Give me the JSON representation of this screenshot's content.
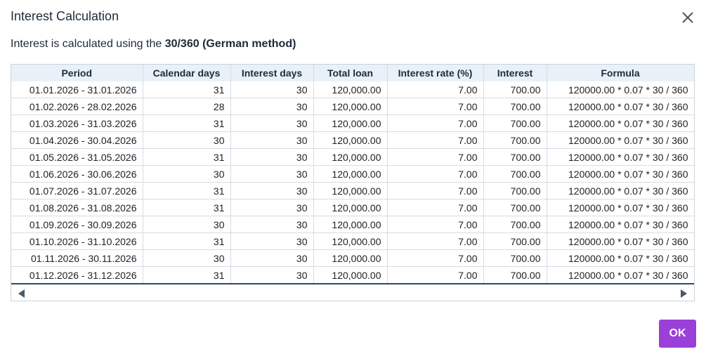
{
  "dialog": {
    "title": "Interest Calculation",
    "description_prefix": "Interest is calculated using the ",
    "description_bold": "30/360 (German method)",
    "ok_label": "OK",
    "accent_color": "#9b3fd9"
  },
  "table": {
    "columns": [
      "Period",
      "Calendar days",
      "Interest days",
      "Total loan",
      "Interest rate (%)",
      "Interest",
      "Formula"
    ],
    "rows": [
      [
        "01.01.2026 - 31.01.2026",
        "31",
        "30",
        "120,000.00",
        "7.00",
        "700.00",
        "120000.00 * 0.07 * 30 / 360"
      ],
      [
        "01.02.2026 - 28.02.2026",
        "28",
        "30",
        "120,000.00",
        "7.00",
        "700.00",
        "120000.00 * 0.07 * 30 / 360"
      ],
      [
        "01.03.2026 - 31.03.2026",
        "31",
        "30",
        "120,000.00",
        "7.00",
        "700.00",
        "120000.00 * 0.07 * 30 / 360"
      ],
      [
        "01.04.2026 - 30.04.2026",
        "30",
        "30",
        "120,000.00",
        "7.00",
        "700.00",
        "120000.00 * 0.07 * 30 / 360"
      ],
      [
        "01.05.2026 - 31.05.2026",
        "31",
        "30",
        "120,000.00",
        "7.00",
        "700.00",
        "120000.00 * 0.07 * 30 / 360"
      ],
      [
        "01.06.2026 - 30.06.2026",
        "30",
        "30",
        "120,000.00",
        "7.00",
        "700.00",
        "120000.00 * 0.07 * 30 / 360"
      ],
      [
        "01.07.2026 - 31.07.2026",
        "31",
        "30",
        "120,000.00",
        "7.00",
        "700.00",
        "120000.00 * 0.07 * 30 / 360"
      ],
      [
        "01.08.2026 - 31.08.2026",
        "31",
        "30",
        "120,000.00",
        "7.00",
        "700.00",
        "120000.00 * 0.07 * 30 / 360"
      ],
      [
        "01.09.2026 - 30.09.2026",
        "30",
        "30",
        "120,000.00",
        "7.00",
        "700.00",
        "120000.00 * 0.07 * 30 / 360"
      ],
      [
        "01.10.2026 - 31.10.2026",
        "31",
        "30",
        "120,000.00",
        "7.00",
        "700.00",
        "120000.00 * 0.07 * 30 / 360"
      ],
      [
        "01.11.2026 - 30.11.2026",
        "30",
        "30",
        "120,000.00",
        "7.00",
        "700.00",
        "120000.00 * 0.07 * 30 / 360"
      ],
      [
        "01.12.2026 - 31.12.2026",
        "31",
        "30",
        "120,000.00",
        "7.00",
        "700.00",
        "120000.00 * 0.07 * 30 / 360"
      ]
    ]
  },
  "icons": {
    "close": "close-icon",
    "scroll_left": "chevron-left-icon",
    "scroll_right": "chevron-right-icon"
  }
}
